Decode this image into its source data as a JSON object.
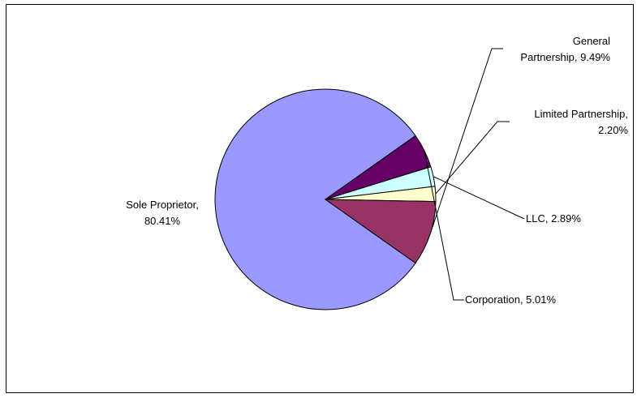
{
  "chart_data": {
    "type": "pie",
    "slices": [
      {
        "label": "Sole Proprietor",
        "value": 80.41,
        "value_label": "80.41%",
        "color": "#9999FF"
      },
      {
        "label": "General Partnership",
        "value": 9.49,
        "value_label": "9.49%",
        "color": "#993366"
      },
      {
        "label": "Limited Partnership",
        "value": 2.2,
        "value_label": "2.20%",
        "color": "#FFFFCC"
      },
      {
        "label": "LLC",
        "value": 2.89,
        "value_label": "2.89%",
        "color": "#CCFFFF"
      },
      {
        "label": "Corporation",
        "value": 5.01,
        "value_label": "5.01%",
        "color": "#660066"
      }
    ],
    "legend": "none"
  }
}
